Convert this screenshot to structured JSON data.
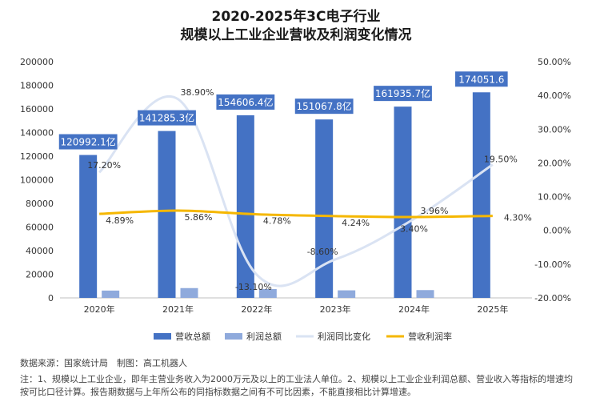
{
  "titles": {
    "line1": "2020-2025年3C电子行业",
    "line2": "规模以上工业企业营收及利润变化情况"
  },
  "footer": {
    "source": "数据来源：国家统计局　制图：高工机器人",
    "note": "注：1、规模以上工业企业，即年主营业务收入为2000万元及以上的工业法人单位。2、规模以上工业企业利润总额、营业收入等指标的增速均按可比口径计算。报告期数据与上年所公布的同指标数据之间有不可比因素，不能直接相比计算增速。"
  },
  "colors": {
    "revenue": "#4472c4",
    "profit": "#8faadc",
    "growth": "#dae3f3",
    "margin": "#f5b700",
    "labelBox": "#4472c4"
  },
  "chart_data": {
    "type": "bar",
    "categories": [
      "2020年",
      "2021年",
      "2022年",
      "2023年",
      "2024年",
      "2025年"
    ],
    "left_axis": {
      "min": 0,
      "max": 200000,
      "step": 20000,
      "ticks": [
        "0",
        "20000",
        "40000",
        "60000",
        "80000",
        "100000",
        "120000",
        "140000",
        "160000",
        "180000",
        "200000"
      ]
    },
    "right_axis": {
      "min": -20,
      "max": 50,
      "step": 10,
      "ticks": [
        "-20.00%",
        "-10.00%",
        "0.00%",
        "10.00%",
        "20.00%",
        "30.00%",
        "40.00%",
        "50.00%"
      ]
    },
    "series": [
      {
        "name": "营收总额",
        "type": "bar",
        "axis": "left",
        "values": [
          120992.1,
          141285.3,
          154606.4,
          151067.8,
          161935.7,
          174051.6
        ],
        "labels": [
          "120992.1亿",
          "141285.3亿",
          "154606.4亿",
          "151067.8亿",
          "161935.7亿",
          "174051.6"
        ]
      },
      {
        "name": "利润总额",
        "type": "bar",
        "axis": "left",
        "values": [
          6200,
          8300,
          7500,
          6400,
          6600,
          null
        ]
      },
      {
        "name": "利润同比变化",
        "type": "line",
        "axis": "right",
        "values": [
          17.2,
          38.9,
          -13.1,
          -8.6,
          3.4,
          19.5
        ],
        "labels": [
          "17.20%",
          "38.90%",
          "-13.10%",
          "-8.60%",
          "3.40%",
          "19.50%"
        ]
      },
      {
        "name": "营收利润率",
        "type": "line",
        "axis": "right",
        "values": [
          4.89,
          5.86,
          4.78,
          4.24,
          3.96,
          4.3
        ],
        "labels": [
          "4.89%",
          "5.86%",
          "4.78%",
          "4.24%",
          "3.96%",
          "4.30%"
        ]
      }
    ],
    "grid": false,
    "legend": "bottom"
  }
}
